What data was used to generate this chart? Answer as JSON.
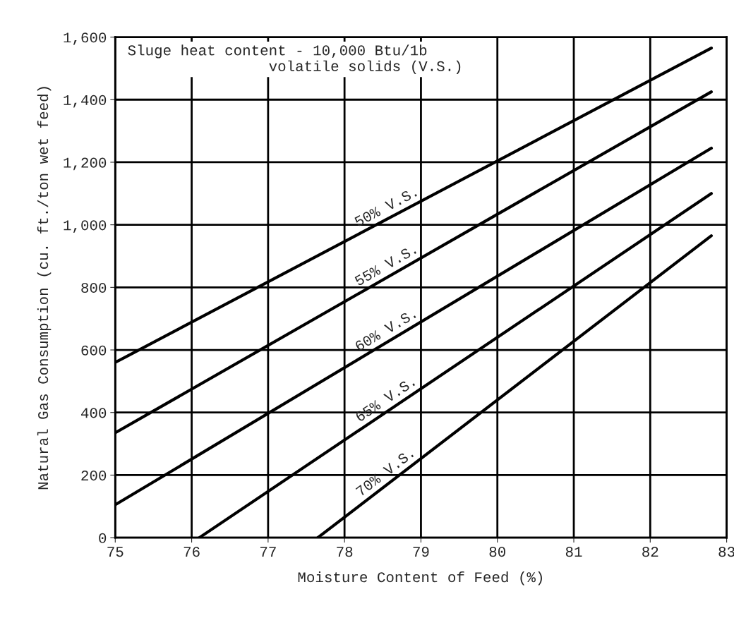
{
  "chart_data": {
    "type": "line",
    "xlabel": "Moisture Content of Feed (%)",
    "ylabel": "Natural Gas Consumption (cu. ft./ton wet feed)",
    "xlim": [
      75,
      83
    ],
    "xticks": [
      75,
      76,
      77,
      78,
      79,
      80,
      81,
      82,
      83
    ],
    "ylim": [
      0,
      1600
    ],
    "yticks": [
      {
        "value": 0,
        "label": "0"
      },
      {
        "value": 200,
        "label": "200"
      },
      {
        "value": 400,
        "label": "400"
      },
      {
        "value": 600,
        "label": "600"
      },
      {
        "value": 800,
        "label": "800"
      },
      {
        "value": 1000,
        "label": "1,000"
      },
      {
        "value": 1200,
        "label": "1,200"
      },
      {
        "value": 1400,
        "label": "1,400"
      },
      {
        "value": 1600,
        "label": "1,600"
      }
    ],
    "grid": true,
    "marker": "none",
    "line_style": "solid",
    "series": [
      {
        "name": "50% V.S.",
        "color": "#000000",
        "x": [
          75,
          82.8
        ],
        "values": [
          560,
          1565
        ]
      },
      {
        "name": "55% V.S.",
        "color": "#000000",
        "x": [
          75,
          82.8
        ],
        "values": [
          335,
          1425
        ]
      },
      {
        "name": "60% V.S.",
        "color": "#000000",
        "x": [
          75,
          82.8
        ],
        "values": [
          105,
          1245
        ]
      },
      {
        "name": "65% V.S.",
        "color": "#000000",
        "x": [
          76.1,
          82.8
        ],
        "values": [
          0,
          1100
        ]
      },
      {
        "name": "70% V.S.",
        "color": "#000000",
        "x": [
          77.65,
          82.8
        ],
        "values": [
          0,
          965
        ]
      }
    ],
    "annotations": [
      "Sluge heat content - 10,000 Btu/1b\n                volatile solids (V.S.)"
    ]
  }
}
